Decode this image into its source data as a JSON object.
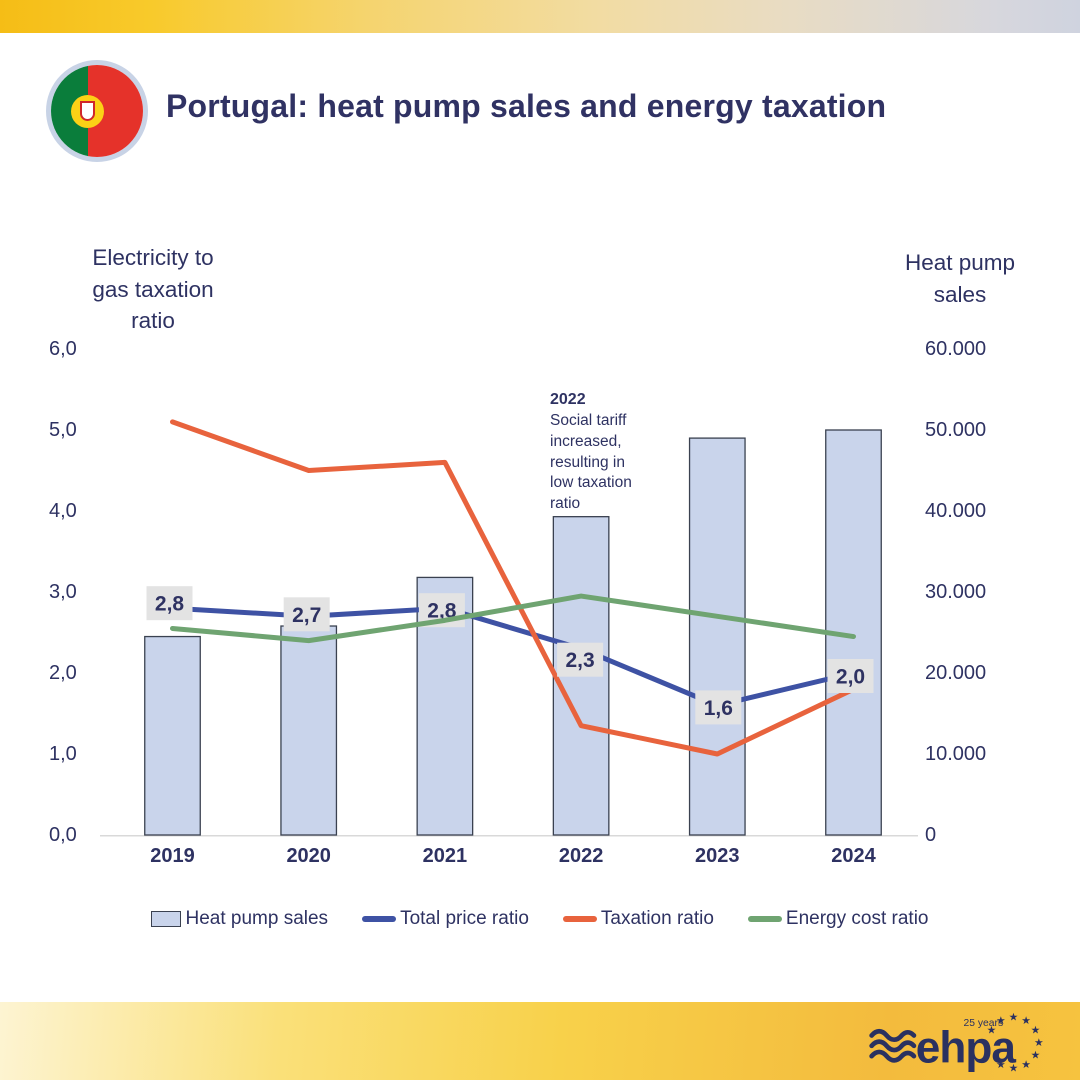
{
  "header": {
    "title": "Portugal: heat pump sales and energy taxation"
  },
  "chart_data": {
    "type": "combo-bar-line",
    "categories": [
      "2019",
      "2020",
      "2021",
      "2022",
      "2023",
      "2024"
    ],
    "bar_series": {
      "name": "Heat pump sales",
      "axis": "right",
      "values": [
        24500,
        25800,
        31800,
        39300,
        49000,
        50000
      ],
      "color": "#C9D4EB",
      "border": "#3A4150"
    },
    "line_series": [
      {
        "name": "Total price ratio",
        "axis": "left",
        "color": "#3E52A4",
        "values": [
          2.8,
          2.7,
          2.8,
          2.3,
          1.6,
          2.0
        ],
        "labels": [
          "2,8",
          "2,7",
          "2,8",
          "2,3",
          "1,6",
          "2,0"
        ]
      },
      {
        "name": "Taxation ratio",
        "axis": "left",
        "color": "#E8633D",
        "values": [
          5.1,
          4.5,
          4.6,
          1.35,
          1.0,
          1.8
        ]
      },
      {
        "name": "Energy cost ratio",
        "axis": "left",
        "color": "#6FA471",
        "values": [
          2.55,
          2.4,
          2.65,
          2.95,
          2.7,
          2.45
        ]
      }
    ],
    "left_axis": {
      "title_lines": [
        "Electricity to",
        "gas taxation",
        "ratio"
      ],
      "ticks": [
        "0,0",
        "1,0",
        "2,0",
        "3,0",
        "4,0",
        "5,0",
        "6,0"
      ],
      "min": 0,
      "max": 6
    },
    "right_axis": {
      "title_lines": [
        "Heat pump",
        "sales"
      ],
      "ticks": [
        "0",
        "10.000",
        "20.000",
        "30.000",
        "40.000",
        "50.000",
        "60.000"
      ],
      "min": 0,
      "max": 60000
    },
    "annotation": {
      "title": "2022",
      "body": "Social tariff\nincreased,\nresulting in\nlow taxation\nratio"
    },
    "grid": "off",
    "legend_position": "bottom",
    "label_box_bg": "#E3E3E3",
    "axis_line_color": "#D9D9D9",
    "text_color": "#2E3262"
  },
  "legend": {
    "items": [
      {
        "label": "Heat pump sales",
        "type": "bar"
      },
      {
        "label": "Total price ratio",
        "type": "line"
      },
      {
        "label": "Taxation ratio",
        "type": "line"
      },
      {
        "label": "Energy cost ratio",
        "type": "line"
      }
    ]
  },
  "footer": {
    "logo_text": "ehpa",
    "logo_tagline": "25 years"
  }
}
